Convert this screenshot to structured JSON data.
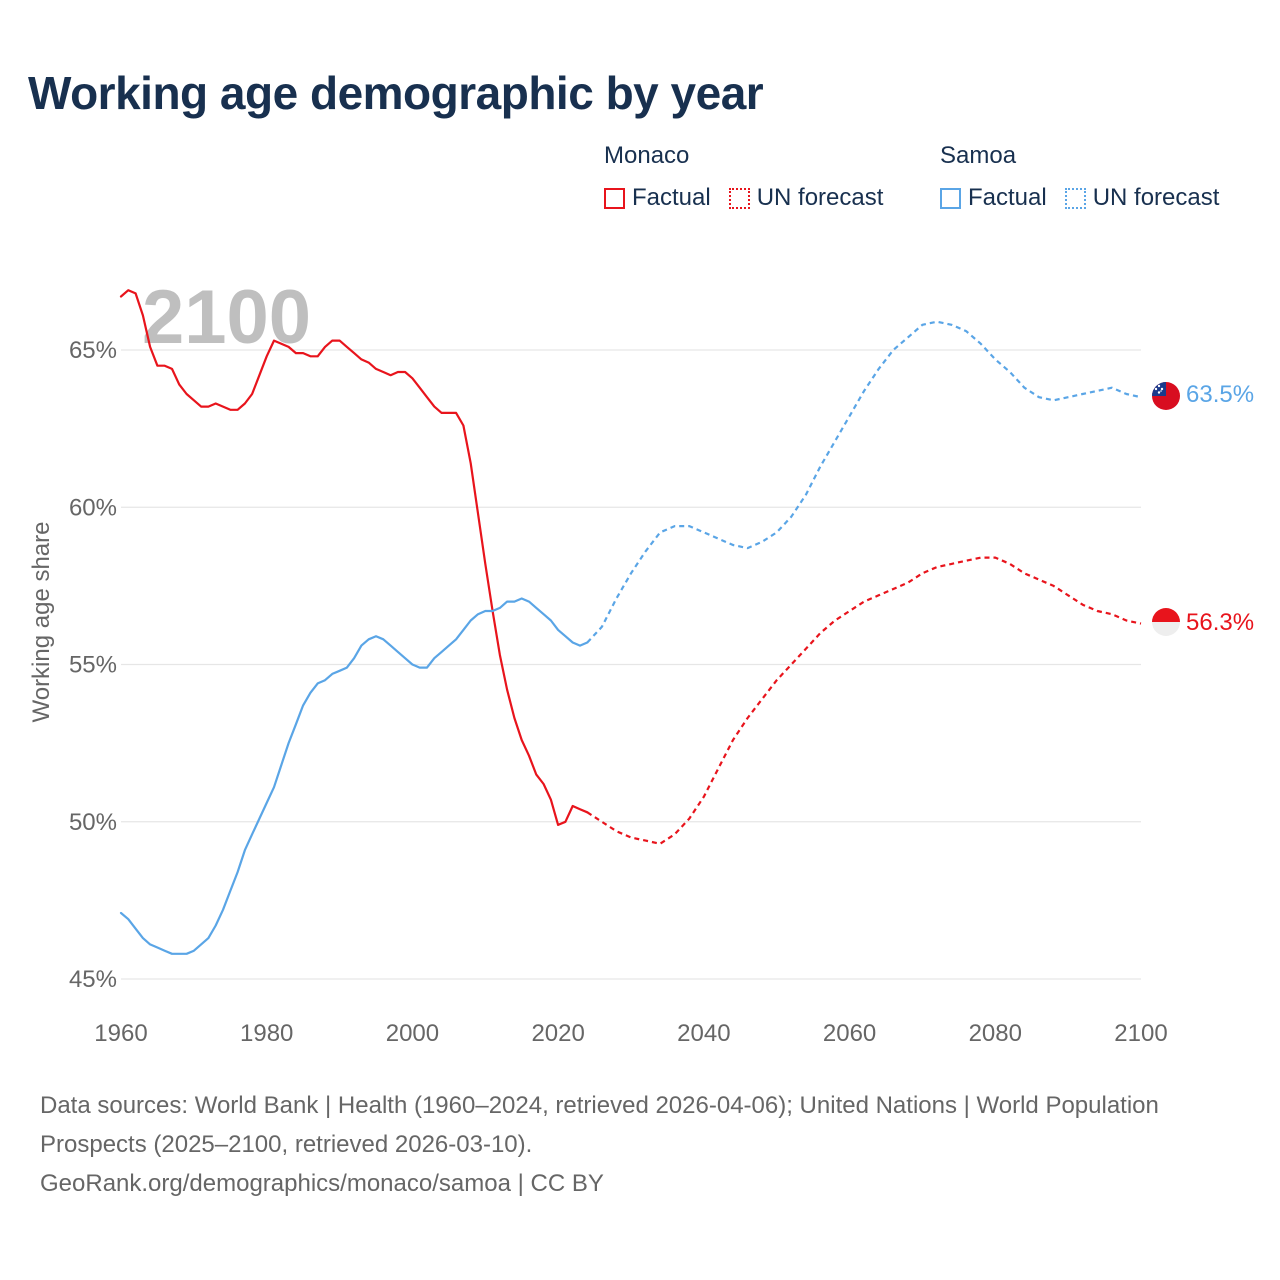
{
  "title": "Working age demographic by year",
  "year_overlay": "2100",
  "legend": [
    {
      "name": "Monaco",
      "color": "#e8141c",
      "factual_label": "Factual",
      "forecast_label": "UN forecast"
    },
    {
      "name": "Samoa",
      "color": "#5aa5e6",
      "factual_label": "Factual",
      "forecast_label": "UN forecast"
    }
  ],
  "footer": {
    "line1": "Data sources: World Bank | Health (1960–2024, retrieved 2026-04-06); United Nations | World Population Prospects (2025–2100, retrieved 2026-03-10).",
    "line2": "GeoRank.org/demographics/monaco/samoa | CC BY"
  },
  "chart_data": {
    "type": "line",
    "title": "Working age demographic by year",
    "xlabel": "",
    "ylabel": "Working age share",
    "xlim": [
      1960,
      2100
    ],
    "ylim": [
      45,
      67
    ],
    "x_ticks": [
      1960,
      1980,
      2000,
      2020,
      2040,
      2060,
      2080,
      2100
    ],
    "x_tick_labels": [
      "1960",
      "1980",
      "2000",
      "2020",
      "2040",
      "2060",
      "2080",
      "2100"
    ],
    "y_ticks": [
      45,
      50,
      55,
      60,
      65
    ],
    "y_tick_labels": [
      "45%",
      "50%",
      "55%",
      "60%",
      "65%"
    ],
    "grid": true,
    "series": [
      {
        "name": "Monaco",
        "color": "#e8141c",
        "end_label": "56.3%",
        "factual": {
          "x": [
            1960,
            1961,
            1962,
            1963,
            1964,
            1965,
            1966,
            1967,
            1968,
            1969,
            1970,
            1971,
            1972,
            1973,
            1974,
            1975,
            1976,
            1977,
            1978,
            1979,
            1980,
            1981,
            1982,
            1983,
            1984,
            1985,
            1986,
            1987,
            1988,
            1989,
            1990,
            1991,
            1992,
            1993,
            1994,
            1995,
            1996,
            1997,
            1998,
            1999,
            2000,
            2001,
            2002,
            2003,
            2004,
            2005,
            2006,
            2007,
            2008,
            2009,
            2010,
            2011,
            2012,
            2013,
            2014,
            2015,
            2016,
            2017,
            2018,
            2019,
            2020,
            2021,
            2022,
            2023,
            2024
          ],
          "y": [
            66.7,
            66.9,
            66.8,
            66.1,
            65.1,
            64.5,
            64.5,
            64.4,
            63.9,
            63.6,
            63.4,
            63.2,
            63.2,
            63.3,
            63.2,
            63.1,
            63.1,
            63.3,
            63.6,
            64.2,
            64.8,
            65.3,
            65.2,
            65.1,
            64.9,
            64.9,
            64.8,
            64.8,
            65.1,
            65.3,
            65.3,
            65.1,
            64.9,
            64.7,
            64.6,
            64.4,
            64.3,
            64.2,
            64.3,
            64.3,
            64.1,
            63.8,
            63.5,
            63.2,
            63.0,
            63.0,
            63.0,
            62.6,
            61.4,
            59.8,
            58.2,
            56.7,
            55.3,
            54.2,
            53.3,
            52.6,
            52.1,
            51.5,
            51.2,
            50.7,
            49.9,
            50.0,
            50.5,
            50.4,
            50.3
          ]
        },
        "forecast": {
          "x": [
            2024,
            2026,
            2028,
            2030,
            2032,
            2034,
            2036,
            2038,
            2040,
            2042,
            2044,
            2046,
            2048,
            2050,
            2052,
            2054,
            2056,
            2058,
            2060,
            2062,
            2064,
            2066,
            2068,
            2070,
            2072,
            2074,
            2076,
            2078,
            2080,
            2082,
            2084,
            2086,
            2088,
            2090,
            2092,
            2094,
            2096,
            2098,
            2100
          ],
          "y": [
            50.3,
            50.0,
            49.7,
            49.5,
            49.4,
            49.3,
            49.6,
            50.1,
            50.8,
            51.7,
            52.6,
            53.3,
            53.9,
            54.5,
            55.0,
            55.5,
            56.0,
            56.4,
            56.7,
            57.0,
            57.2,
            57.4,
            57.6,
            57.9,
            58.1,
            58.2,
            58.3,
            58.4,
            58.4,
            58.2,
            57.9,
            57.7,
            57.5,
            57.2,
            56.9,
            56.7,
            56.6,
            56.4,
            56.3
          ]
        }
      },
      {
        "name": "Samoa",
        "color": "#5aa5e6",
        "end_label": "63.5%",
        "factual": {
          "x": [
            1960,
            1961,
            1962,
            1963,
            1964,
            1965,
            1966,
            1967,
            1968,
            1969,
            1970,
            1971,
            1972,
            1973,
            1974,
            1975,
            1976,
            1977,
            1978,
            1979,
            1980,
            1981,
            1982,
            1983,
            1984,
            1985,
            1986,
            1987,
            1988,
            1989,
            1990,
            1991,
            1992,
            1993,
            1994,
            1995,
            1996,
            1997,
            1998,
            1999,
            2000,
            2001,
            2002,
            2003,
            2004,
            2005,
            2006,
            2007,
            2008,
            2009,
            2010,
            2011,
            2012,
            2013,
            2014,
            2015,
            2016,
            2017,
            2018,
            2019,
            2020,
            2021,
            2022,
            2023,
            2024
          ],
          "y": [
            47.1,
            46.9,
            46.6,
            46.3,
            46.1,
            46.0,
            45.9,
            45.8,
            45.8,
            45.8,
            45.9,
            46.1,
            46.3,
            46.7,
            47.2,
            47.8,
            48.4,
            49.1,
            49.6,
            50.1,
            50.6,
            51.1,
            51.8,
            52.5,
            53.1,
            53.7,
            54.1,
            54.4,
            54.5,
            54.7,
            54.8,
            54.9,
            55.2,
            55.6,
            55.8,
            55.9,
            55.8,
            55.6,
            55.4,
            55.2,
            55.0,
            54.9,
            54.9,
            55.2,
            55.4,
            55.6,
            55.8,
            56.1,
            56.4,
            56.6,
            56.7,
            56.7,
            56.8,
            57.0,
            57.0,
            57.1,
            57.0,
            56.8,
            56.6,
            56.4,
            56.1,
            55.9,
            55.7,
            55.6,
            55.7
          ]
        },
        "forecast": {
          "x": [
            2024,
            2026,
            2028,
            2030,
            2032,
            2034,
            2036,
            2038,
            2040,
            2042,
            2044,
            2046,
            2048,
            2050,
            2052,
            2054,
            2056,
            2058,
            2060,
            2062,
            2064,
            2066,
            2068,
            2070,
            2072,
            2074,
            2076,
            2078,
            2080,
            2082,
            2084,
            2086,
            2088,
            2090,
            2092,
            2094,
            2096,
            2098,
            2100
          ],
          "y": [
            55.7,
            56.2,
            57.1,
            57.9,
            58.6,
            59.2,
            59.4,
            59.4,
            59.2,
            59.0,
            58.8,
            58.7,
            58.9,
            59.2,
            59.7,
            60.4,
            61.3,
            62.1,
            62.9,
            63.7,
            64.4,
            65.0,
            65.4,
            65.8,
            65.9,
            65.8,
            65.6,
            65.2,
            64.7,
            64.3,
            63.8,
            63.5,
            63.4,
            63.5,
            63.6,
            63.7,
            63.8,
            63.6,
            63.5
          ]
        }
      }
    ]
  }
}
